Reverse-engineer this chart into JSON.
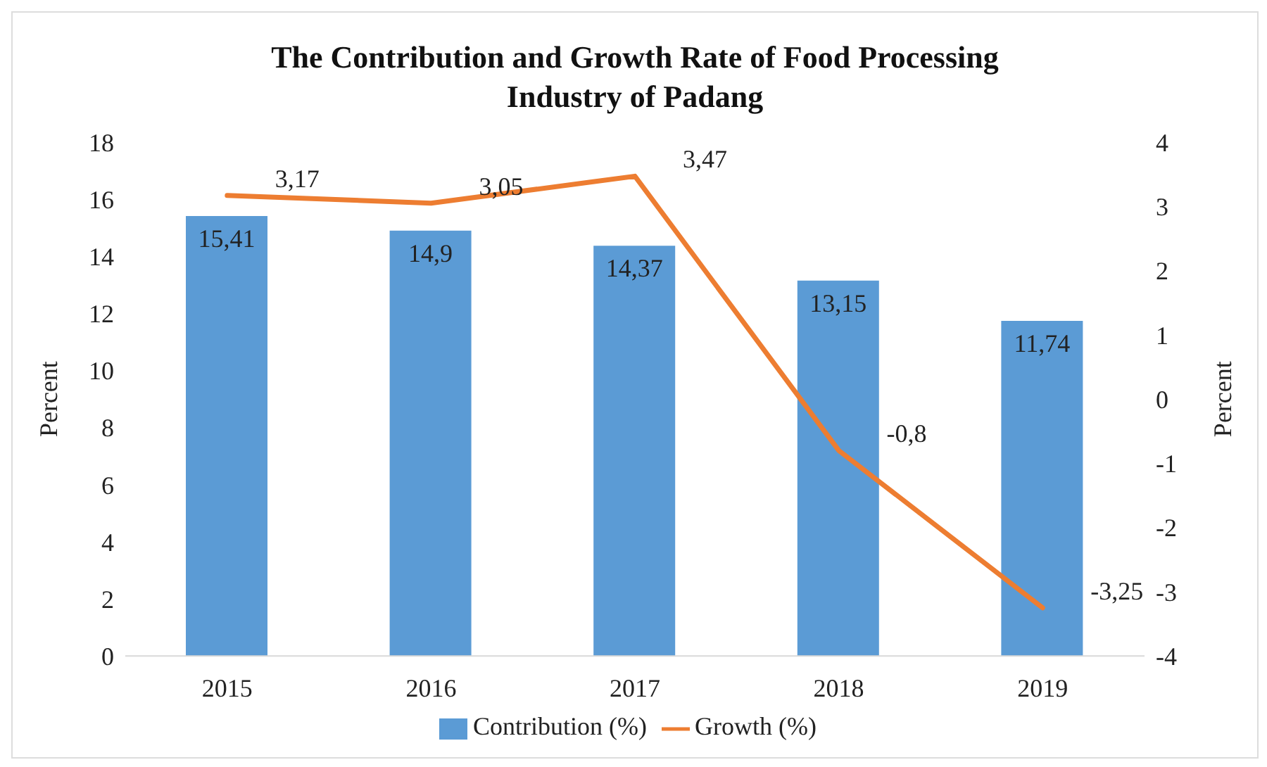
{
  "chart_data": {
    "type": "bar",
    "title": "The Contribution and Growth Rate of Food Processing Industry of Padang",
    "ylabel": "Percent",
    "y2label": "Percent",
    "categories": [
      "2015",
      "2016",
      "2017",
      "2018",
      "2019"
    ],
    "series": [
      {
        "name": "Contribution (%)",
        "color": "#5b9bd5",
        "values": [
          15.41,
          14.9,
          14.37,
          13.15,
          11.74
        ],
        "value_labels": [
          "15,41",
          "14,9",
          "14,37",
          "13,15",
          "11,74"
        ]
      },
      {
        "name": "Growth (%)",
        "type": "line",
        "axis": "y2",
        "color": "#ed7d31",
        "values": [
          3.17,
          3.05,
          3.47,
          -0.8,
          -3.25
        ],
        "value_labels": [
          "3,17",
          "3,05",
          "3,47",
          "-0,8",
          "-3,25"
        ]
      }
    ],
    "ylim": [
      0,
      18
    ],
    "yticks": [
      0,
      2,
      4,
      6,
      8,
      10,
      12,
      14,
      16,
      18
    ],
    "y2lim": [
      -4,
      4
    ],
    "y2ticks": [
      -4,
      -3,
      -2,
      -1,
      0,
      1,
      2,
      3,
      4
    ],
    "grid": false,
    "legend": "bottom",
    "marker": "none",
    "line_style": "solid"
  }
}
